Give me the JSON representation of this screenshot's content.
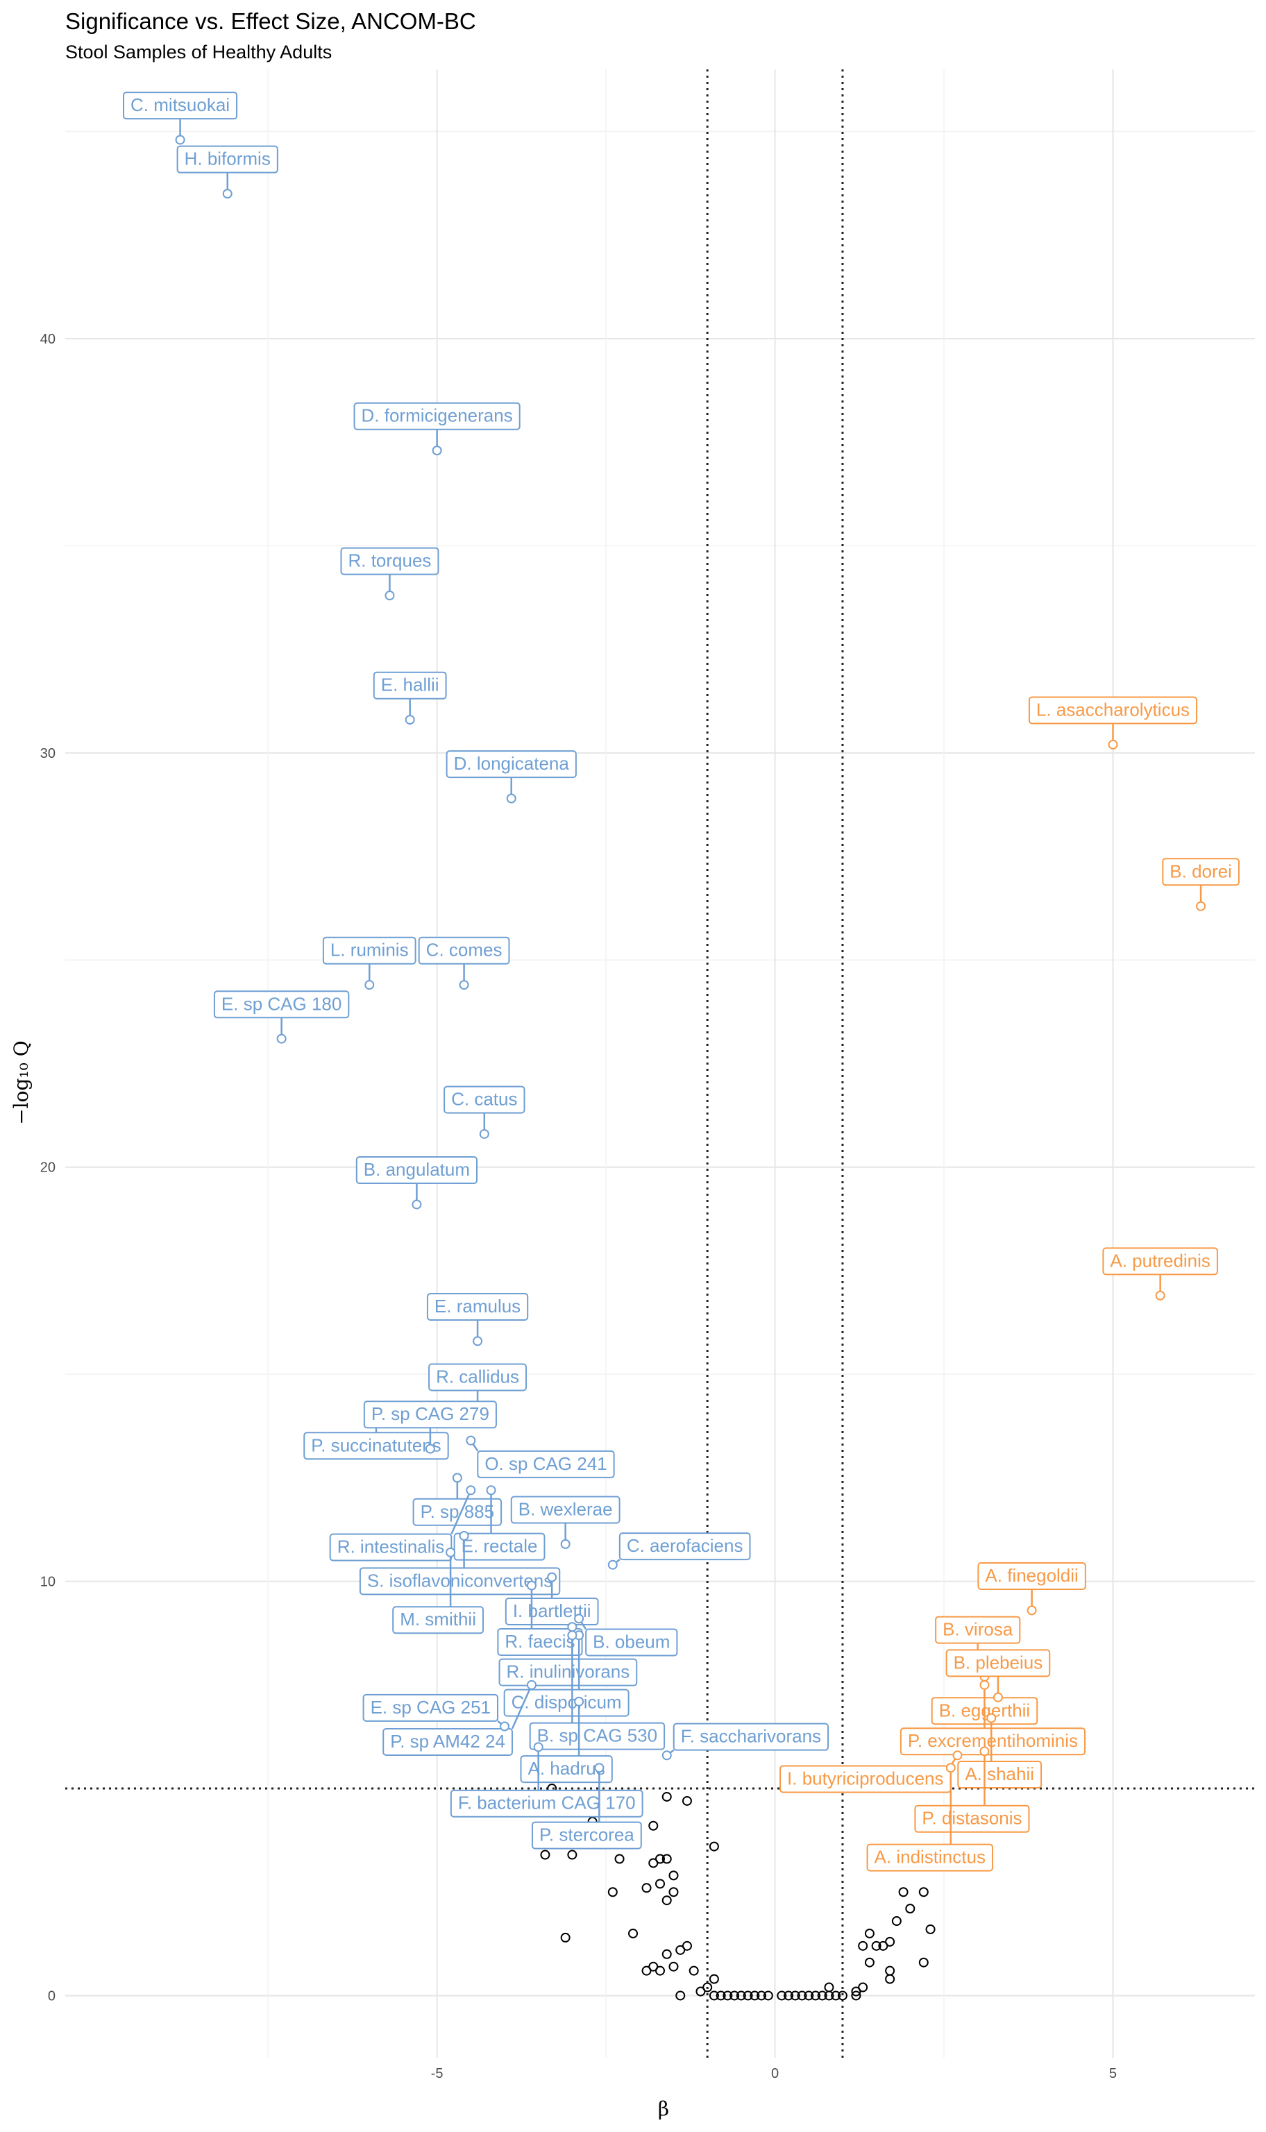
{
  "chart_data": {
    "type": "scatter",
    "title": "Significance vs. Effect Size, ANCOM-BC",
    "subtitle": "Stool Samples of Healthy Adults",
    "xlabel": "β",
    "ylabel": "−log₁₀ Q",
    "xlim": [
      -10.5,
      7.1
    ],
    "ylim": [
      -1.5,
      46.5
    ],
    "x_ticks": [
      -5,
      0,
      5
    ],
    "y_ticks": [
      0,
      10,
      20,
      30,
      40
    ],
    "grid": true,
    "thresholds": {
      "beta": [
        -1,
        1
      ],
      "neg_log10_q": 5
    },
    "colors": {
      "decreased": "#6f9fd3",
      "increased": "#f79a47",
      "not_significant": "#000000"
    },
    "labeled_points": [
      {
        "label": "C. mitsuokai",
        "x": -8.8,
        "y": 44.8,
        "dir": "down"
      },
      {
        "label": "H. biformis",
        "x": -8.1,
        "y": 43.5,
        "dir": "down"
      },
      {
        "label": "D. formicigenerans",
        "x": -5.0,
        "y": 37.3,
        "dir": "down"
      },
      {
        "label": "R. torques",
        "x": -5.7,
        "y": 33.8,
        "dir": "down"
      },
      {
        "label": "E. hallii",
        "x": -5.4,
        "y": 30.8,
        "dir": "down"
      },
      {
        "label": "D. longicatena",
        "x": -3.9,
        "y": 28.9,
        "dir": "down"
      },
      {
        "label": "L. ruminis",
        "x": -6.0,
        "y": 24.4,
        "dir": "down"
      },
      {
        "label": "C. comes",
        "x": -4.6,
        "y": 24.4,
        "dir": "down"
      },
      {
        "label": "E. sp CAG 180",
        "x": -7.3,
        "y": 23.1,
        "dir": "down"
      },
      {
        "label": "C. catus",
        "x": -4.3,
        "y": 20.8,
        "dir": "down"
      },
      {
        "label": "B. angulatum",
        "x": -5.3,
        "y": 19.1,
        "dir": "down"
      },
      {
        "label": "E. ramulus",
        "x": -4.4,
        "y": 15.8,
        "dir": "down"
      },
      {
        "label": "R. callidus",
        "x": -4.4,
        "y": 14.1,
        "dir": "down"
      },
      {
        "label": "P. succinatutens",
        "x": -5.9,
        "y": 14.1,
        "dir": "down"
      },
      {
        "label": "P. sp CAG 279",
        "x": -5.1,
        "y": 13.2,
        "dir": "down"
      },
      {
        "label": "O. sp CAG 241",
        "x": -4.5,
        "y": 13.4,
        "dir": "down"
      },
      {
        "label": "P. sp 885",
        "x": -4.7,
        "y": 12.5,
        "dir": "down"
      },
      {
        "label": "E. rectale",
        "x": -4.2,
        "y": 12.2,
        "dir": "down"
      },
      {
        "label": "R. intestinalis",
        "x": -4.5,
        "y": 12.2,
        "dir": "down"
      },
      {
        "label": "B. wexlerae",
        "x": -3.1,
        "y": 10.9,
        "dir": "down"
      },
      {
        "label": "S. isoflavoniconvertens",
        "x": -4.6,
        "y": 11.1,
        "dir": "down"
      },
      {
        "label": "C. aerofaciens",
        "x": -2.4,
        "y": 10.4,
        "dir": "down"
      },
      {
        "label": "I. bartlettii",
        "x": -3.3,
        "y": 10.1,
        "dir": "down"
      },
      {
        "label": "M. smithii",
        "x": -4.8,
        "y": 10.7,
        "dir": "down"
      },
      {
        "label": "R. faecis",
        "x": -3.6,
        "y": 9.9,
        "dir": "down"
      },
      {
        "label": "B. obeum",
        "x": -2.9,
        "y": 9.1,
        "dir": "down"
      },
      {
        "label": "R. inulinivorans",
        "x": -3.0,
        "y": 8.9,
        "dir": "down"
      },
      {
        "label": "C. disporicum",
        "x": -2.9,
        "y": 8.7,
        "dir": "down"
      },
      {
        "label": "B. sp CAG 530",
        "x": -3.0,
        "y": 8.7,
        "dir": "down"
      },
      {
        "label": "P. sp AM42 24",
        "x": -3.6,
        "y": 7.5,
        "dir": "down"
      },
      {
        "label": "E. sp CAG 251",
        "x": -4.0,
        "y": 6.5,
        "dir": "down"
      },
      {
        "label": "A. hadrus",
        "x": -2.9,
        "y": 7.1,
        "dir": "down"
      },
      {
        "label": "F. bacterium CAG 170",
        "x": -3.5,
        "y": 6.0,
        "dir": "down"
      },
      {
        "label": "F. saccharivorans",
        "x": -1.6,
        "y": 5.8,
        "dir": "down"
      },
      {
        "label": "P. stercorea",
        "x": -2.6,
        "y": 5.5,
        "dir": "down"
      },
      {
        "label": "L. asaccharolyticus",
        "x": 5.0,
        "y": 30.2,
        "dir": "up"
      },
      {
        "label": "B. dorei",
        "x": 6.3,
        "y": 26.3,
        "dir": "up"
      },
      {
        "label": "A. putredinis",
        "x": 5.7,
        "y": 16.9,
        "dir": "up"
      },
      {
        "label": "A. finegoldii",
        "x": 3.8,
        "y": 9.3,
        "dir": "up"
      },
      {
        "label": "B. virosa",
        "x": 3.0,
        "y": 8.0,
        "dir": "up"
      },
      {
        "label": "B. eggerthii",
        "x": 3.1,
        "y": 7.7,
        "dir": "up"
      },
      {
        "label": "B. plebeius",
        "x": 3.3,
        "y": 7.2,
        "dir": "up"
      },
      {
        "label": "P. excrementihominis",
        "x": 3.1,
        "y": 7.5,
        "dir": "up"
      },
      {
        "label": "A. shahii",
        "x": 3.2,
        "y": 6.7,
        "dir": "up"
      },
      {
        "label": "I. butyriciproducens",
        "x": 2.7,
        "y": 5.8,
        "dir": "up"
      },
      {
        "label": "P. distasonis",
        "x": 3.1,
        "y": 5.9,
        "dir": "up"
      },
      {
        "label": "A. indistinctus",
        "x": 2.6,
        "y": 5.5,
        "dir": "up"
      }
    ],
    "other_points": [
      {
        "x": -2.3,
        "y": 4.8
      },
      {
        "x": -1.6,
        "y": 4.8
      },
      {
        "x": -1.3,
        "y": 4.7
      },
      {
        "x": -2.7,
        "y": 4.2
      },
      {
        "x": -3.3,
        "y": 5.0
      },
      {
        "x": -1.8,
        "y": 4.1
      },
      {
        "x": -3.4,
        "y": 3.4
      },
      {
        "x": -3.0,
        "y": 3.4
      },
      {
        "x": -0.9,
        "y": 3.6
      },
      {
        "x": -2.3,
        "y": 3.3
      },
      {
        "x": -1.8,
        "y": 3.2
      },
      {
        "x": -1.7,
        "y": 3.3
      },
      {
        "x": -1.6,
        "y": 3.3
      },
      {
        "x": -1.5,
        "y": 2.9
      },
      {
        "x": -2.4,
        "y": 2.5
      },
      {
        "x": -1.9,
        "y": 2.6
      },
      {
        "x": -1.7,
        "y": 2.7
      },
      {
        "x": -1.6,
        "y": 2.3
      },
      {
        "x": -1.5,
        "y": 2.5
      },
      {
        "x": -2.1,
        "y": 1.5
      },
      {
        "x": -3.1,
        "y": 1.4
      },
      {
        "x": -1.3,
        "y": 1.2
      },
      {
        "x": -1.6,
        "y": 1.0
      },
      {
        "x": -1.4,
        "y": 1.1
      },
      {
        "x": -1.8,
        "y": 0.7
      },
      {
        "x": -1.9,
        "y": 0.6
      },
      {
        "x": -1.7,
        "y": 0.6
      },
      {
        "x": -1.5,
        "y": 0.7
      },
      {
        "x": -1.2,
        "y": 0.6
      },
      {
        "x": -0.9,
        "y": 0.4
      },
      {
        "x": -1.4,
        "y": 0.0
      },
      {
        "x": -1.1,
        "y": 0.1
      },
      {
        "x": -1.0,
        "y": 0.2
      },
      {
        "x": 2.9,
        "y": 3.3
      },
      {
        "x": 1.9,
        "y": 2.5
      },
      {
        "x": 2.2,
        "y": 2.5
      },
      {
        "x": 2.3,
        "y": 1.6
      },
      {
        "x": 2.0,
        "y": 2.1
      },
      {
        "x": 1.8,
        "y": 1.8
      },
      {
        "x": 1.4,
        "y": 1.5
      },
      {
        "x": 1.5,
        "y": 1.2
      },
      {
        "x": 1.7,
        "y": 1.3
      },
      {
        "x": 1.3,
        "y": 1.2
      },
      {
        "x": 1.6,
        "y": 1.2
      },
      {
        "x": 2.2,
        "y": 0.8
      },
      {
        "x": 1.4,
        "y": 0.8
      },
      {
        "x": 1.7,
        "y": 0.6
      },
      {
        "x": 1.7,
        "y": 0.4
      },
      {
        "x": 1.3,
        "y": 0.2
      },
      {
        "x": 1.2,
        "y": 0.1
      },
      {
        "x": 0.8,
        "y": 0.2
      },
      {
        "x": 1.2,
        "y": 0.0
      },
      {
        "x": -0.9,
        "y": 0.0
      },
      {
        "x": -0.8,
        "y": 0.0
      },
      {
        "x": -0.7,
        "y": 0.0
      },
      {
        "x": -0.6,
        "y": 0.0
      },
      {
        "x": -0.5,
        "y": 0.0
      },
      {
        "x": -0.4,
        "y": 0.0
      },
      {
        "x": -0.3,
        "y": 0.0
      },
      {
        "x": -0.2,
        "y": 0.0
      },
      {
        "x": -0.1,
        "y": 0.0
      },
      {
        "x": 0.1,
        "y": 0.0
      },
      {
        "x": 0.2,
        "y": 0.0
      },
      {
        "x": 0.3,
        "y": 0.0
      },
      {
        "x": 0.4,
        "y": 0.0
      },
      {
        "x": 0.5,
        "y": 0.0
      },
      {
        "x": 0.6,
        "y": 0.0
      },
      {
        "x": 0.7,
        "y": 0.0
      },
      {
        "x": 0.8,
        "y": 0.0
      },
      {
        "x": 0.9,
        "y": 0.0
      },
      {
        "x": 1.0,
        "y": 0.0
      }
    ]
  }
}
